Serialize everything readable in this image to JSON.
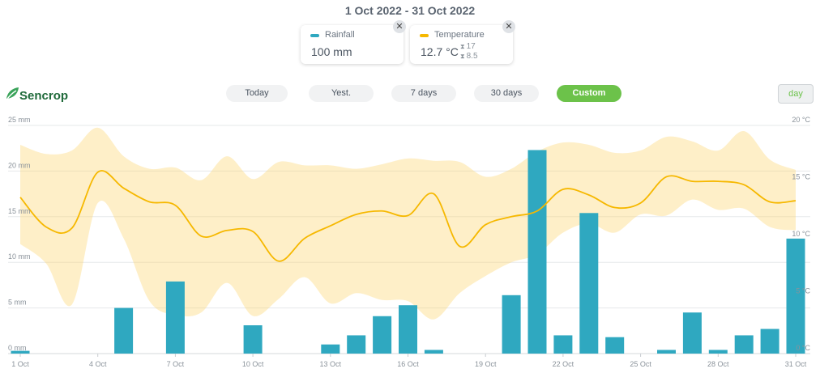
{
  "header": {
    "date_range": "1 Oct 2022 - 31 Oct 2022"
  },
  "cards": {
    "rainfall": {
      "label": "Rainfall",
      "value": "100 mm",
      "color": "#2fa8c0",
      "close": "✕"
    },
    "temperature": {
      "label": "Temperature",
      "value": "12.7 °C",
      "max": "17",
      "min": "8.5",
      "color": "#f6b800",
      "close": "✕"
    }
  },
  "brand": {
    "name": "Sencrop",
    "icon": "leaf-icon"
  },
  "periods": [
    {
      "label": "Today",
      "active": false
    },
    {
      "label": "Yest.",
      "active": false
    },
    {
      "label": "7 days",
      "active": false
    },
    {
      "label": "30 days",
      "active": false
    },
    {
      "label": "Custom",
      "active": true
    }
  ],
  "granularity": {
    "label": "day"
  },
  "chart_data": {
    "type": "bar",
    "left_axis": {
      "ticks": [
        "0 mm",
        "5 mm",
        "10 mm",
        "15 mm",
        "20 mm",
        "25 mm"
      ],
      "range": [
        0,
        25
      ]
    },
    "right_axis": {
      "ticks": [
        "0 °C",
        "5 °C",
        "10 °C",
        "15 °C",
        "20 °C"
      ],
      "range": [
        0,
        20
      ]
    },
    "x_ticks": [
      "1 Oct",
      "4 Oct",
      "7 Oct",
      "10 Oct",
      "13 Oct",
      "16 Oct",
      "19 Oct",
      "22 Oct",
      "25 Oct",
      "28 Oct",
      "31 Oct"
    ],
    "days": [
      1,
      2,
      3,
      4,
      5,
      6,
      7,
      8,
      9,
      10,
      11,
      12,
      13,
      14,
      15,
      16,
      17,
      18,
      19,
      20,
      21,
      22,
      23,
      24,
      25,
      26,
      27,
      28,
      29,
      30,
      31
    ],
    "series": [
      {
        "name": "Rainfall",
        "unit": "mm",
        "type": "bar",
        "color": "#2fa8c0",
        "values": [
          0.3,
          0,
          0,
          0,
          5.0,
          0,
          7.9,
          0,
          0,
          3.1,
          0,
          0,
          1.0,
          2.0,
          4.1,
          5.3,
          0.4,
          0,
          0,
          6.4,
          22.3,
          2.0,
          15.4,
          1.8,
          0,
          0.4,
          4.5,
          0.4,
          2.0,
          2.7,
          12.6
        ]
      },
      {
        "name": "Temperature",
        "unit": "°C",
        "type": "line",
        "color": "#f6b800",
        "values": [
          13.7,
          11.1,
          11.0,
          15.9,
          14.5,
          13.3,
          13.0,
          10.3,
          10.8,
          10.7,
          8.1,
          10.1,
          11.2,
          12.2,
          12.5,
          12.1,
          14.0,
          9.4,
          11.3,
          12.0,
          12.5,
          14.4,
          13.9,
          12.8,
          13.2,
          15.5,
          15.1,
          15.1,
          14.8,
          13.3,
          13.4
        ],
        "max": [
          18.3,
          17.5,
          17.8,
          19.8,
          17.3,
          16.2,
          16.3,
          15.2,
          17.3,
          15.3,
          16.8,
          16.5,
          16.5,
          16.2,
          16.6,
          17.1,
          16.9,
          16.8,
          15.5,
          16.2,
          17.7,
          18.5,
          18.3,
          17.6,
          17.8,
          19.0,
          18.6,
          17.8,
          19.5,
          17.0,
          16.1
        ],
        "min": [
          9.6,
          7.9,
          4.3,
          13.2,
          10.1,
          4.6,
          3.4,
          3.6,
          6.2,
          3.3,
          4.8,
          6.7,
          4.4,
          5.3,
          4.7,
          4.6,
          3.0,
          5.3,
          6.8,
          8.0,
          8.7,
          10.6,
          11.4,
          10.6,
          12.2,
          12.1,
          13.5,
          12.6,
          12.7,
          11.1,
          10.8
        ]
      }
    ]
  }
}
